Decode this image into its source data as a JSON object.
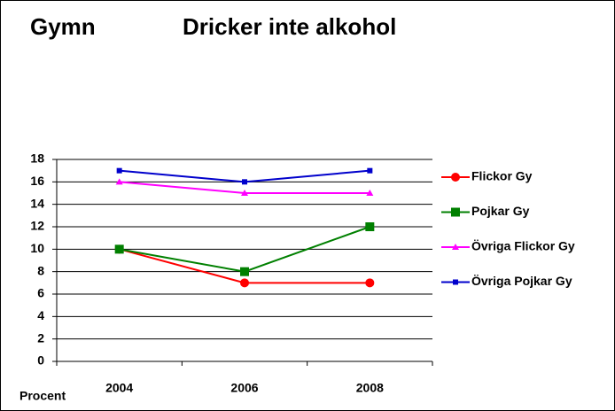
{
  "chart_data": {
    "type": "line",
    "heading": "Gymn",
    "title": "Dricker inte alkohol",
    "ylabel": "Procent",
    "categories": [
      "2004",
      "2006",
      "2008"
    ],
    "series": [
      {
        "name": "Flickor Gy",
        "color": "#ff0000",
        "marker": "circle",
        "values": [
          10,
          7,
          7
        ]
      },
      {
        "name": "Pojkar Gy",
        "color": "#008000",
        "marker": "square",
        "values": [
          10,
          8,
          12
        ]
      },
      {
        "name": "Övriga Flickor Gy",
        "color": "#ff00ff",
        "marker": "triangle",
        "values": [
          16,
          15,
          15
        ]
      },
      {
        "name": "Övriga Pojkar Gy",
        "color": "#0000cc",
        "marker": "small-square",
        "values": [
          17,
          16,
          17
        ]
      }
    ],
    "ylim": [
      0,
      18
    ],
    "yticks": [
      0,
      2,
      4,
      6,
      8,
      10,
      12,
      14,
      16,
      18
    ],
    "grid": true,
    "legend": "right"
  }
}
